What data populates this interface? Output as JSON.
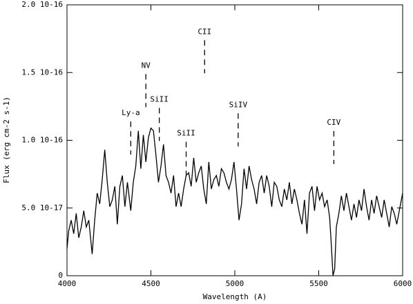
{
  "chart_data": {
    "type": "line",
    "xlabel": "Wavelength (A)",
    "ylabel": "Flux (erg cm-2 s-1)",
    "color": "#000000",
    "xlim": [
      4000,
      6000
    ],
    "xticks": [
      4000,
      4500,
      5000,
      5500,
      6000
    ],
    "ylim": [
      0,
      2e-16
    ],
    "yticks": [
      0,
      {
        "value": 5e-17,
        "label": "5.0 10-17"
      },
      {
        "value": 1e-16,
        "label": "1.0 10-16"
      },
      {
        "value": 1.5e-16,
        "label": "1.5 10-16"
      },
      {
        "value": 2e-16,
        "label": "2.0 10-16"
      }
    ],
    "annotations": [
      {
        "text": "Ly-a",
        "x": 4380,
        "y": 1.2e-16
      },
      {
        "text": "NV",
        "x": 4470,
        "y": 1.55e-16
      },
      {
        "text": "SiII",
        "x": 4550,
        "y": 1.3e-16
      },
      {
        "text": "SiII",
        "x": 4710,
        "y": 1.05e-16
      },
      {
        "text": "CII",
        "x": 4820,
        "y": 1.8e-16
      },
      {
        "text": "SiIV",
        "x": 5020,
        "y": 1.26e-16
      },
      {
        "text": "CIV",
        "x": 5590,
        "y": 1.13e-16
      }
    ],
    "x": [
      4000,
      4010,
      4025,
      4040,
      4055,
      4070,
      4085,
      4100,
      4115,
      4130,
      4150,
      4165,
      4180,
      4195,
      4210,
      4225,
      4240,
      4255,
      4270,
      4285,
      4300,
      4315,
      4330,
      4345,
      4360,
      4380,
      4395,
      4410,
      4425,
      4440,
      4455,
      4470,
      4485,
      4500,
      4515,
      4530,
      4545,
      4560,
      4575,
      4590,
      4605,
      4620,
      4635,
      4650,
      4665,
      4680,
      4695,
      4710,
      4725,
      4740,
      4755,
      4770,
      4785,
      4800,
      4815,
      4830,
      4845,
      4860,
      4875,
      4890,
      4905,
      4920,
      4935,
      4950,
      4965,
      4980,
      4995,
      5010,
      5025,
      5040,
      5055,
      5070,
      5085,
      5100,
      5115,
      5130,
      5145,
      5160,
      5175,
      5190,
      5205,
      5220,
      5235,
      5250,
      5265,
      5280,
      5295,
      5310,
      5325,
      5340,
      5355,
      5370,
      5385,
      5400,
      5415,
      5430,
      5445,
      5460,
      5475,
      5490,
      5505,
      5520,
      5535,
      5550,
      5565,
      5575,
      5585,
      5595,
      5605,
      5620,
      5635,
      5650,
      5665,
      5680,
      5695,
      5710,
      5725,
      5740,
      5755,
      5770,
      5785,
      5800,
      5815,
      5830,
      5845,
      5860,
      5875,
      5890,
      5905,
      5920,
      5935,
      5950,
      5965,
      5980,
      6000
    ],
    "values": [
      2e-17,
      3.3e-17,
      4.1e-17,
      3.1e-17,
      4.6e-17,
      2.8e-17,
      3.6e-17,
      4.8e-17,
      3.6e-17,
      4.1e-17,
      1.6e-17,
      4.1e-17,
      6.1e-17,
      5.3e-17,
      7.1e-17,
      9.3e-17,
      6.9e-17,
      5.1e-17,
      5.6e-17,
      6.6e-17,
      3.8e-17,
      6.6e-17,
      7.4e-17,
      5.1e-17,
      6.9e-17,
      4.8e-17,
      6.9e-17,
      8.1e-17,
      1.07e-16,
      7.9e-17,
      1.04e-16,
      8.4e-17,
      1.02e-16,
      1.09e-16,
      1.07e-16,
      8.9e-17,
      6.9e-17,
      8.1e-17,
      9.7e-17,
      7.4e-17,
      6.9e-17,
      6.1e-17,
      7.4e-17,
      5.1e-17,
      6.1e-17,
      5.1e-17,
      6.4e-17,
      7.4e-17,
      7.6e-17,
      6.6e-17,
      8.7e-17,
      6.9e-17,
      7.6e-17,
      8.1e-17,
      6.4e-17,
      5.3e-17,
      8.4e-17,
      6.4e-17,
      7.1e-17,
      7.4e-17,
      6.6e-17,
      7.9e-17,
      7.6e-17,
      6.9e-17,
      6.4e-17,
      7.1e-17,
      8.4e-17,
      6.4e-17,
      4.1e-17,
      5.3e-17,
      7.9e-17,
      6.4e-17,
      8.1e-17,
      7.1e-17,
      6.4e-17,
      5.3e-17,
      6.9e-17,
      7.4e-17,
      6.1e-17,
      7.4e-17,
      6.6e-17,
      5.1e-17,
      6.9e-17,
      6.6e-17,
      5.6e-17,
      5.1e-17,
      6.4e-17,
      5.6e-17,
      6.9e-17,
      5.3e-17,
      6.4e-17,
      5.6e-17,
      4.6e-17,
      3.8e-17,
      5.6e-17,
      3.1e-17,
      6.1e-17,
      6.6e-17,
      4.8e-17,
      6.6e-17,
      5.6e-17,
      6.1e-17,
      5.1e-17,
      5.6e-17,
      4.3e-17,
      2.3e-17,
      0,
      5e-18,
      3.6e-17,
      4.6e-17,
      5.9e-17,
      4.8e-17,
      6.1e-17,
      5.1e-17,
      4.1e-17,
      5.3e-17,
      4.3e-17,
      5.6e-17,
      4.8e-17,
      6.4e-17,
      5.1e-17,
      4.1e-17,
      5.6e-17,
      4.6e-17,
      5.9e-17,
      5.1e-17,
      4.3e-17,
      5.6e-17,
      4.6e-17,
      3.6e-17,
      5.1e-17,
      4.6e-17,
      3.8e-17,
      4.8e-17,
      6.1e-17
    ]
  }
}
